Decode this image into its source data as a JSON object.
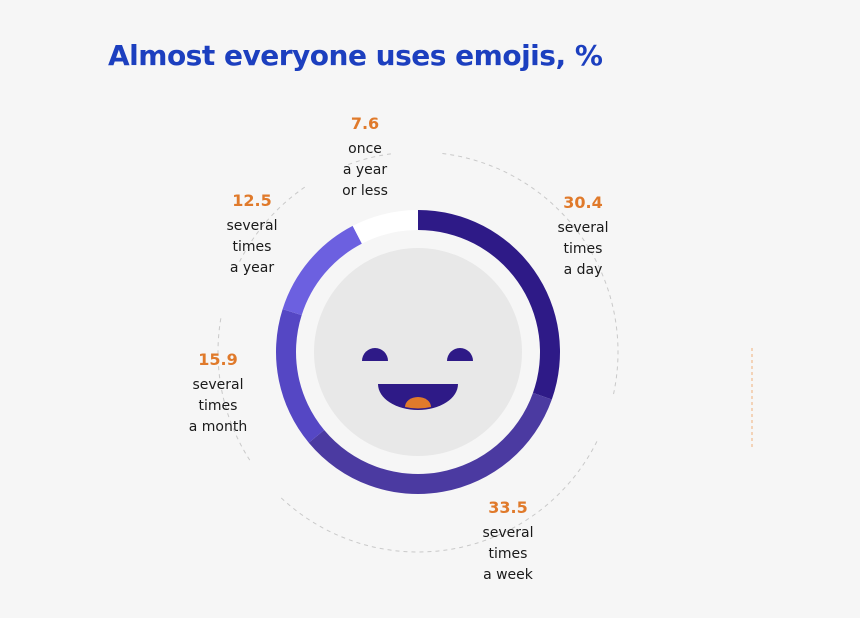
{
  "chart_data": {
    "type": "pie",
    "title": "Almost everyone uses emojis, %",
    "series": [
      {
        "value": 30.4,
        "label": [
          "several",
          "times",
          "a day"
        ],
        "color": "#2e1a87"
      },
      {
        "value": 33.5,
        "label": [
          "several",
          "times",
          "a week"
        ],
        "color": "#4b3aa1"
      },
      {
        "value": 15.9,
        "label": [
          "several",
          "times",
          "a month"
        ],
        "color": "#5547c4"
      },
      {
        "value": 12.5,
        "label": [
          "several",
          "times",
          "a year"
        ],
        "color": "#6c60e0"
      },
      {
        "value": 7.6,
        "label": [
          "once",
          "a year",
          "or less"
        ],
        "color": "#ffffff"
      }
    ],
    "value_color": "#e07a2b",
    "title_color": "#1c3fbf"
  }
}
